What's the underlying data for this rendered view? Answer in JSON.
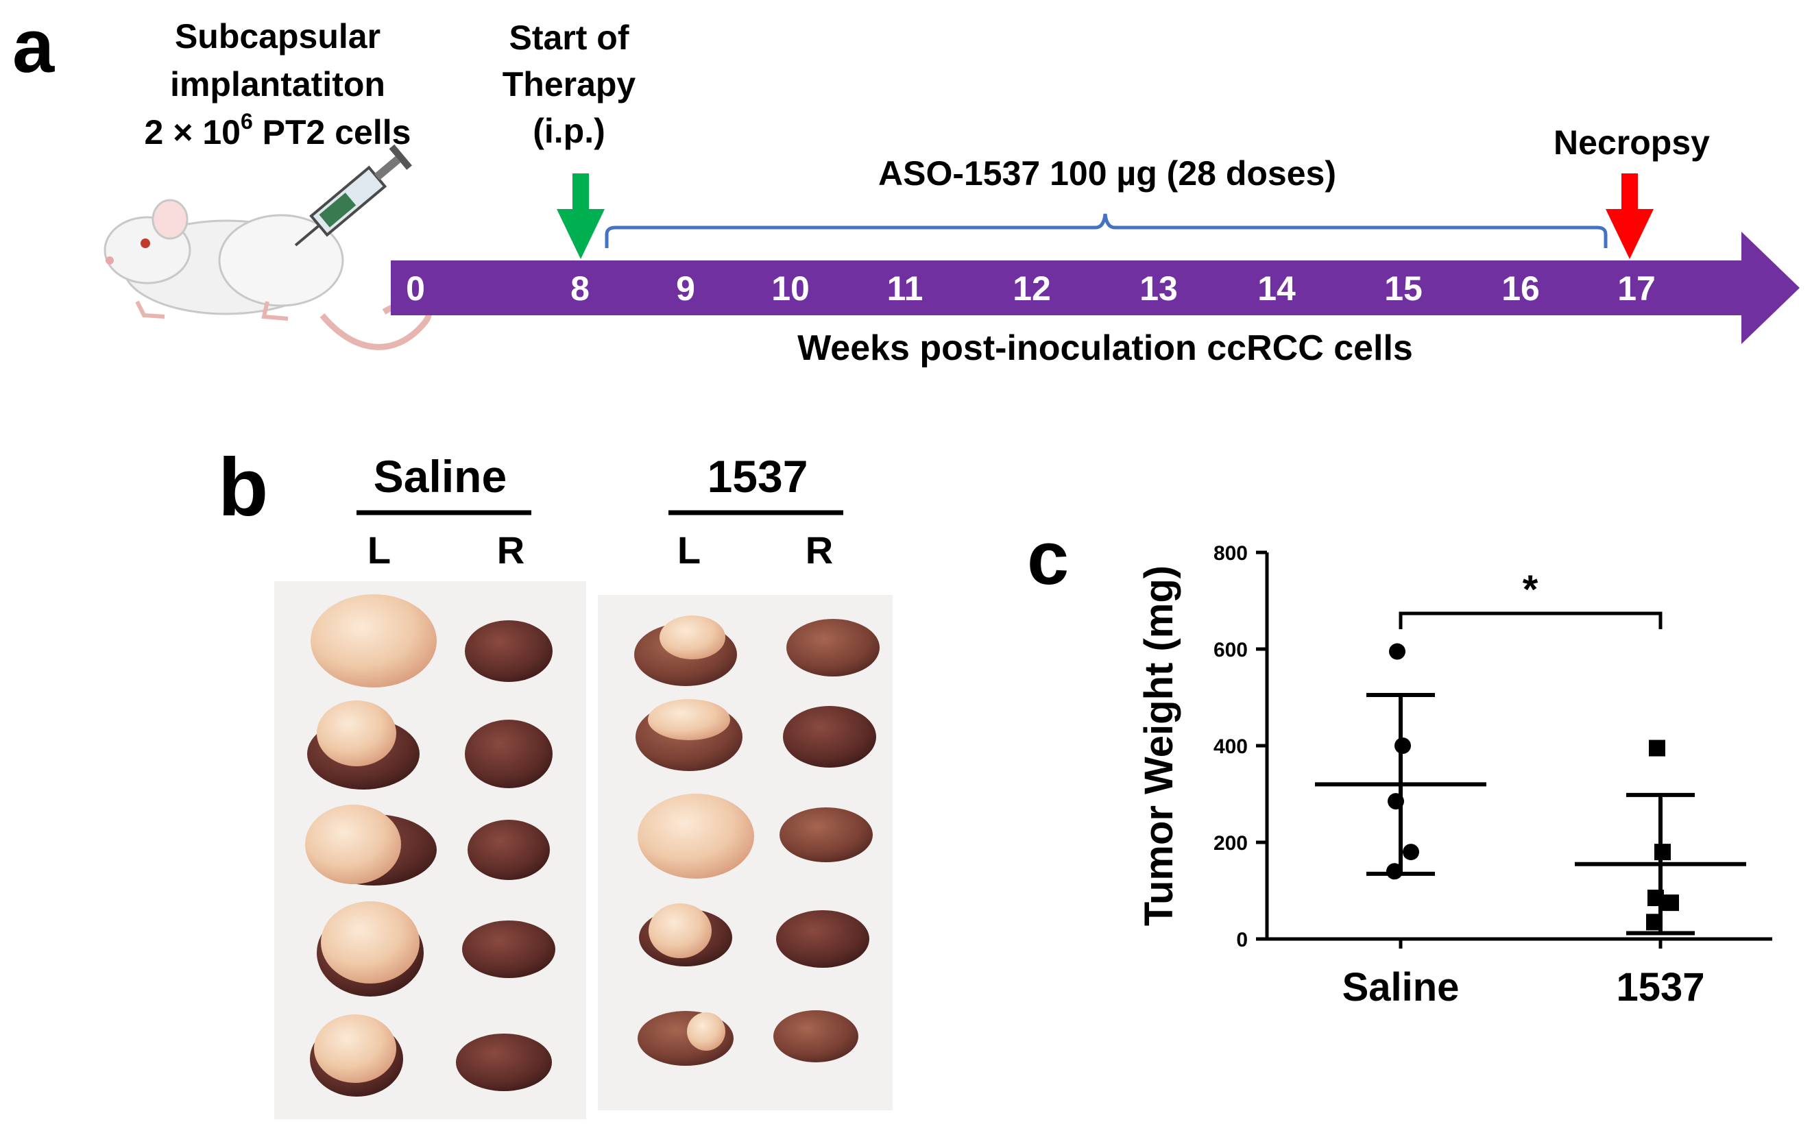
{
  "panel_a": {
    "letter": "a",
    "implant_label": [
      "Subcapsular",
      "implantatiton",
      "2 × 10",
      "6",
      " PT2 cells"
    ],
    "therapy_label": [
      "Start of",
      "Therapy",
      "(i.p.)"
    ],
    "dosing_label": "ASO-1537 100 µg (28 doses)",
    "necropsy_label": "Necropsy",
    "weeks": [
      "0",
      "8",
      "9",
      "10",
      "11",
      "12",
      "13",
      "14",
      "15",
      "16",
      "17"
    ],
    "axis_label": "Weeks post-inoculation ccRCC cells",
    "colors": {
      "timeline": "#7030a0",
      "start_arrow": "#00b050",
      "necropsy_arrow": "#ff0000",
      "brace": "#4472c4"
    }
  },
  "panel_b": {
    "letter": "b",
    "groups": [
      {
        "name": "Saline",
        "left": "L",
        "right": "R"
      },
      {
        "name": "1537",
        "left": "L",
        "right": "R"
      }
    ]
  },
  "panel_c": {
    "letter": "c",
    "significance": "*"
  },
  "chart_data": {
    "type": "scatter",
    "title": "",
    "xlabel": "",
    "ylabel": "Tumor Weight (mg)",
    "ylim": [
      0,
      800
    ],
    "yticks": [
      "0",
      "200",
      "400",
      "600",
      "800"
    ],
    "categories": [
      "Saline",
      "1537"
    ],
    "series": [
      {
        "name": "Saline",
        "marker": "circle",
        "values": [
          595,
          400,
          285,
          180,
          140
        ],
        "mean": 320,
        "sd_upper": 505,
        "sd_lower": 135
      },
      {
        "name": "1537",
        "marker": "square",
        "values": [
          395,
          180,
          85,
          75,
          35
        ],
        "mean": 155,
        "sd_upper": 298,
        "sd_lower": 12
      }
    ]
  }
}
